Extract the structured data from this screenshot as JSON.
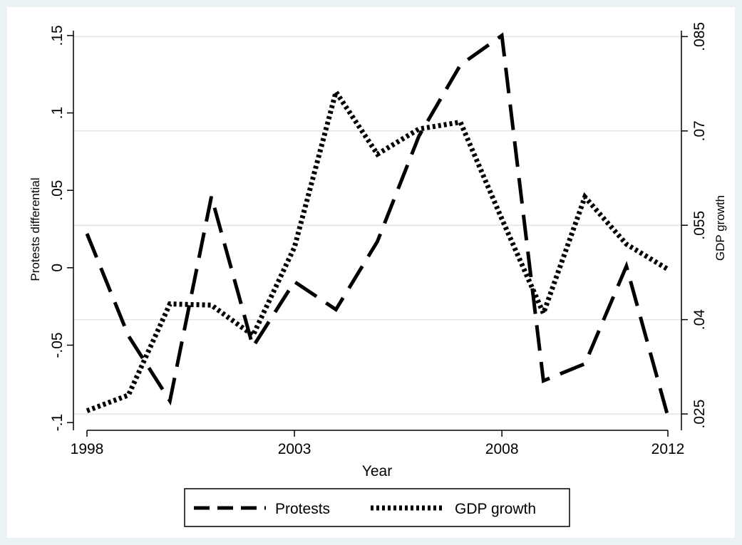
{
  "chart_data": {
    "type": "line",
    "xlabel": "Year",
    "ylabel_left": "Protests differential",
    "ylabel_right": "GDP growth",
    "x_ticks": [
      "1998",
      "2003",
      "2008",
      "2012"
    ],
    "y_left_ticks": [
      ".15",
      ".1",
      ".05",
      "0",
      "-.05",
      "-.1"
    ],
    "y_right_ticks": [
      ".085",
      ".07",
      ".055",
      ".04",
      ".025"
    ],
    "xlim": [
      1998,
      2012
    ],
    "ylim_left": [
      -0.105,
      0.155
    ],
    "ylim_right": [
      0.0224,
      0.0864
    ],
    "grid": "horizontal, right axis",
    "legend_position": "bottom",
    "x": [
      1998,
      1999,
      2000,
      2001,
      2002,
      2003,
      2004,
      2005,
      2006,
      2007,
      2008,
      2009,
      2010,
      2011,
      2012
    ],
    "series": [
      {
        "name": "Protests",
        "axis": "left",
        "style": "dashed",
        "values": [
          0.022,
          -0.044,
          -0.086,
          0.046,
          -0.051,
          -0.009,
          -0.027,
          0.017,
          0.085,
          0.131,
          0.15,
          -0.073,
          -0.062,
          0.001,
          -0.096
        ]
      },
      {
        "name": "GDP growth",
        "axis": "right",
        "style": "dotted",
        "values": [
          0.0255,
          0.028,
          0.0425,
          0.0423,
          0.0375,
          0.0515,
          0.0762,
          0.0663,
          0.0703,
          0.0714,
          0.056,
          0.041,
          0.0595,
          0.052,
          0.048
        ]
      }
    ]
  },
  "legend": {
    "protests_label": "Protests",
    "gdp_label": "GDP growth"
  },
  "colors": {
    "background": "#ffffff",
    "outer_band": "#eaf2f3",
    "gridline": "#dfe6e8",
    "line": "#000000"
  }
}
